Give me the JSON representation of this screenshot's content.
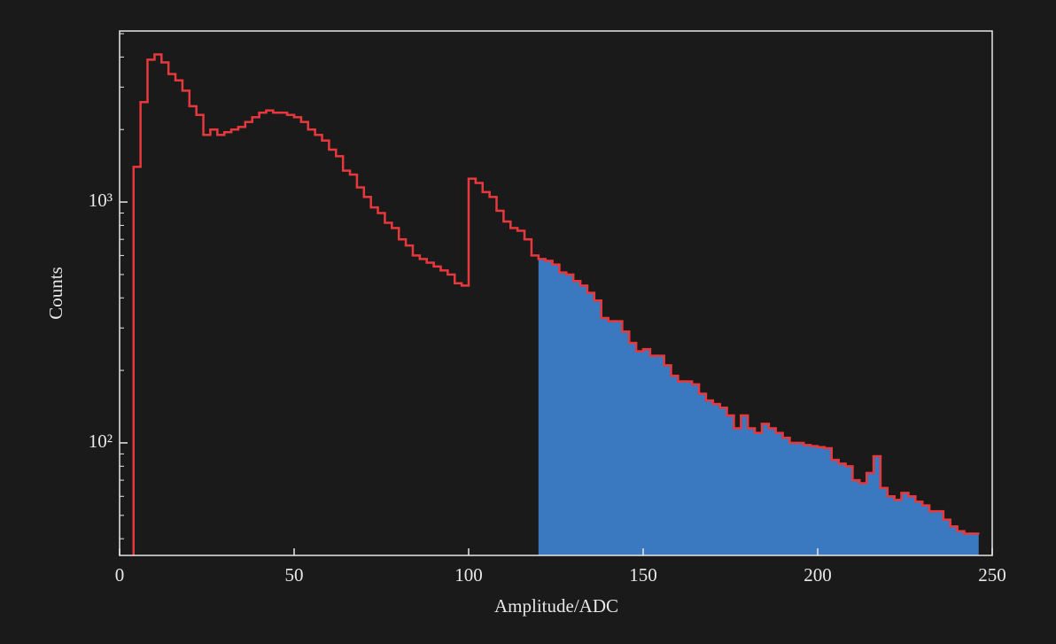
{
  "chart_data": {
    "type": "histogram",
    "xlabel": "Amplitude/ADC",
    "ylabel": "Counts",
    "bins": [
      4,
      6,
      8,
      10,
      12,
      14,
      16,
      18,
      20,
      22,
      24,
      26,
      28,
      30,
      32,
      34,
      36,
      38,
      40,
      42,
      44,
      46,
      48,
      50,
      52,
      54,
      56,
      58,
      60,
      62,
      64,
      66,
      68,
      70,
      72,
      74,
      76,
      78,
      80,
      82,
      84,
      86,
      88,
      90,
      92,
      94,
      96,
      98,
      100,
      102,
      104,
      106,
      108,
      110,
      112,
      114,
      116,
      118,
      120,
      122,
      124,
      126,
      128,
      130,
      132,
      134,
      136,
      138,
      140,
      142,
      144,
      146,
      148,
      150,
      152,
      154,
      156,
      158,
      160,
      162,
      164,
      166,
      168,
      170,
      172,
      174,
      176,
      178,
      180,
      182,
      184,
      186,
      188,
      190,
      192,
      194,
      196,
      198,
      200,
      202,
      204,
      206,
      208,
      210,
      212,
      214,
      216,
      218,
      220,
      222,
      224,
      226,
      228,
      230,
      232,
      234,
      236,
      238,
      240,
      242,
      244,
      246
    ],
    "counts": [
      1400,
      2600,
      3900,
      4100,
      3800,
      3400,
      3200,
      2900,
      2500,
      2300,
      1900,
      2000,
      1900,
      1950,
      2000,
      2050,
      2150,
      2250,
      2350,
      2400,
      2350,
      2350,
      2300,
      2250,
      2150,
      2000,
      1900,
      1800,
      1650,
      1550,
      1350,
      1300,
      1150,
      1050,
      950,
      900,
      820,
      780,
      700,
      660,
      600,
      580,
      560,
      540,
      520,
      500,
      460,
      450,
      1250,
      1200,
      1100,
      1050,
      920,
      830,
      780,
      760,
      700,
      600,
      580,
      570,
      550,
      510,
      500,
      470,
      450,
      420,
      390,
      330,
      320,
      320,
      290,
      260,
      240,
      245,
      230,
      230,
      210,
      190,
      180,
      180,
      175,
      160,
      150,
      145,
      140,
      130,
      115,
      130,
      115,
      110,
      120,
      115,
      110,
      105,
      100,
      100,
      98,
      97,
      96,
      95,
      85,
      82,
      80,
      70,
      68,
      75,
      88,
      65,
      60,
      58,
      62,
      60,
      57,
      55,
      52,
      52,
      48,
      45,
      43,
      42,
      42
    ],
    "line_color": "#e8383d",
    "fill_color": "#3a78c0",
    "fill_from": 120,
    "log_y": true,
    "xlim": [
      0,
      250
    ],
    "xticks": [
      0,
      50,
      100,
      150,
      200,
      250
    ],
    "ylim": [
      34.1,
      5130
    ],
    "yticks": [
      {
        "value": 100,
        "label": "10²"
      },
      {
        "value": 1000,
        "label": "10³"
      }
    ],
    "yminorticks": [
      40,
      50,
      60,
      70,
      80,
      90,
      200,
      300,
      400,
      500,
      600,
      700,
      800,
      900,
      2000,
      3000,
      4000,
      5000
    ]
  }
}
